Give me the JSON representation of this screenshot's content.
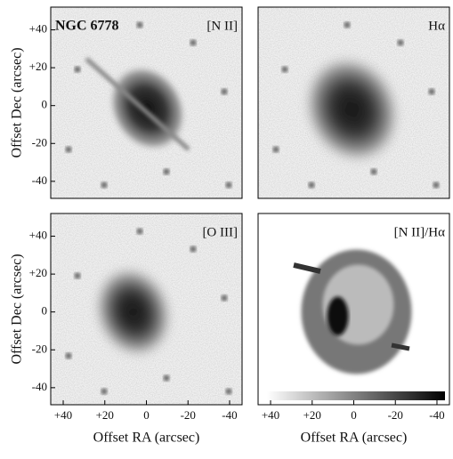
{
  "chart_data": [
    {
      "type": "image",
      "title": "NGC 6778",
      "label": "[N II]",
      "ylabel": "Offset Dec (arcsec)",
      "xlim": [
        46,
        -46
      ],
      "ylim": [
        -49,
        52
      ],
      "yticks": [
        {
          "value": 40,
          "label": "+40"
        },
        {
          "value": 20,
          "label": "+20"
        },
        0,
        -20,
        -40
      ]
    },
    {
      "type": "image",
      "label": "Hα",
      "xlim": [
        46,
        -46
      ],
      "ylim": [
        -49,
        52
      ]
    },
    {
      "type": "image",
      "label": "[O III]",
      "ylabel": "Offset Dec (arcsec)",
      "xlabel": "Offset RA (arcsec)",
      "xlim": [
        46,
        -46
      ],
      "ylim": [
        -49,
        52
      ],
      "xticks": [
        {
          "value": 40,
          "label": "+40"
        },
        {
          "value": 20,
          "label": "+20"
        },
        0,
        -20,
        -40
      ],
      "yticks": [
        {
          "value": 40,
          "label": "+40"
        },
        {
          "value": 20,
          "label": "+20"
        },
        0,
        -20,
        -40
      ]
    },
    {
      "type": "image",
      "label": "[N II]/Hα",
      "xlabel": "Offset RA (arcsec)",
      "xlim": [
        46,
        -46
      ],
      "ylim": [
        -49,
        52
      ],
      "xticks": [
        {
          "value": 40,
          "label": "+40"
        },
        {
          "value": 20,
          "label": "+20"
        },
        0,
        -20,
        -40
      ]
    }
  ]
}
